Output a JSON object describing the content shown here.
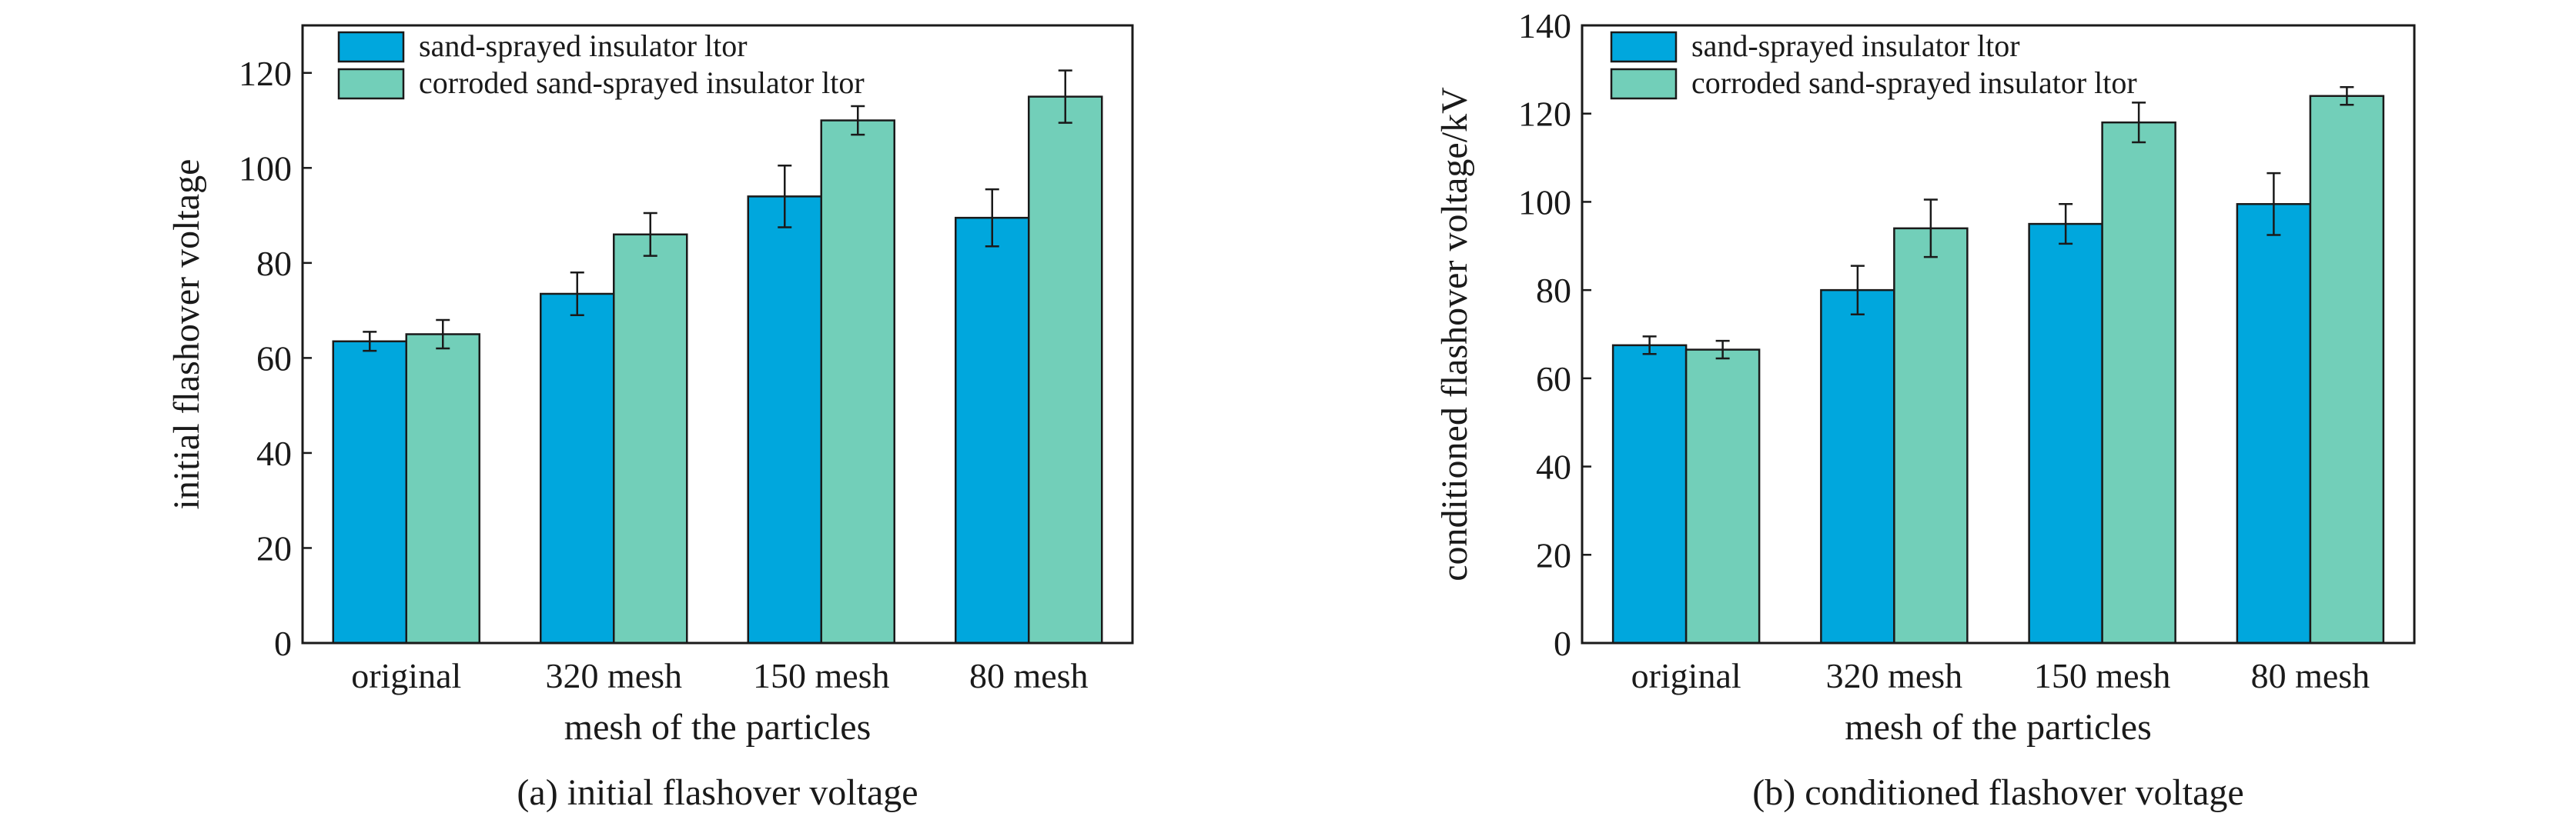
{
  "colors": {
    "series1": "#00a7dd",
    "series2": "#72cfb9",
    "axis": "#1a1a1a"
  },
  "chart_data": [
    {
      "type": "bar",
      "caption": "(a) initial flashover voltage",
      "xlabel": "mesh of the particles",
      "ylabel": "initial flashover voltage",
      "categories": [
        "original",
        "320 mesh",
        "150 mesh",
        "80 mesh"
      ],
      "yticks": [
        "0",
        "20",
        "40",
        "60",
        "80",
        "100",
        "120"
      ],
      "ylim": [
        0,
        130
      ],
      "legend_position": "top-left",
      "series": [
        {
          "name": "sand-sprayed insulator ltor",
          "values": [
            63.5,
            73.5,
            94,
            89.5
          ],
          "errors": [
            2,
            4.5,
            6.5,
            6
          ]
        },
        {
          "name": "corroded sand-sprayed insulator ltor",
          "values": [
            65,
            86,
            110,
            115
          ],
          "errors": [
            3,
            4.5,
            3,
            5.5
          ]
        }
      ]
    },
    {
      "type": "bar",
      "caption": "(b) conditioned flashover voltage",
      "xlabel": "mesh of the particles",
      "ylabel": "conditioned flashover voltage/kV",
      "categories": [
        "original",
        "320 mesh",
        "150 mesh",
        "80 mesh"
      ],
      "yticks": [
        "0",
        "20",
        "40",
        "60",
        "80",
        "100",
        "120",
        "140"
      ],
      "ylim": [
        0,
        140
      ],
      "legend_position": "top-left",
      "series": [
        {
          "name": "sand-sprayed insulator ltor",
          "values": [
            67.5,
            80,
            95,
            99.5
          ],
          "errors": [
            2,
            5.5,
            4.5,
            7
          ]
        },
        {
          "name": "corroded sand-sprayed insulator ltor",
          "values": [
            66.5,
            94,
            118,
            124
          ],
          "errors": [
            2,
            6.5,
            4.5,
            2
          ]
        }
      ]
    }
  ]
}
